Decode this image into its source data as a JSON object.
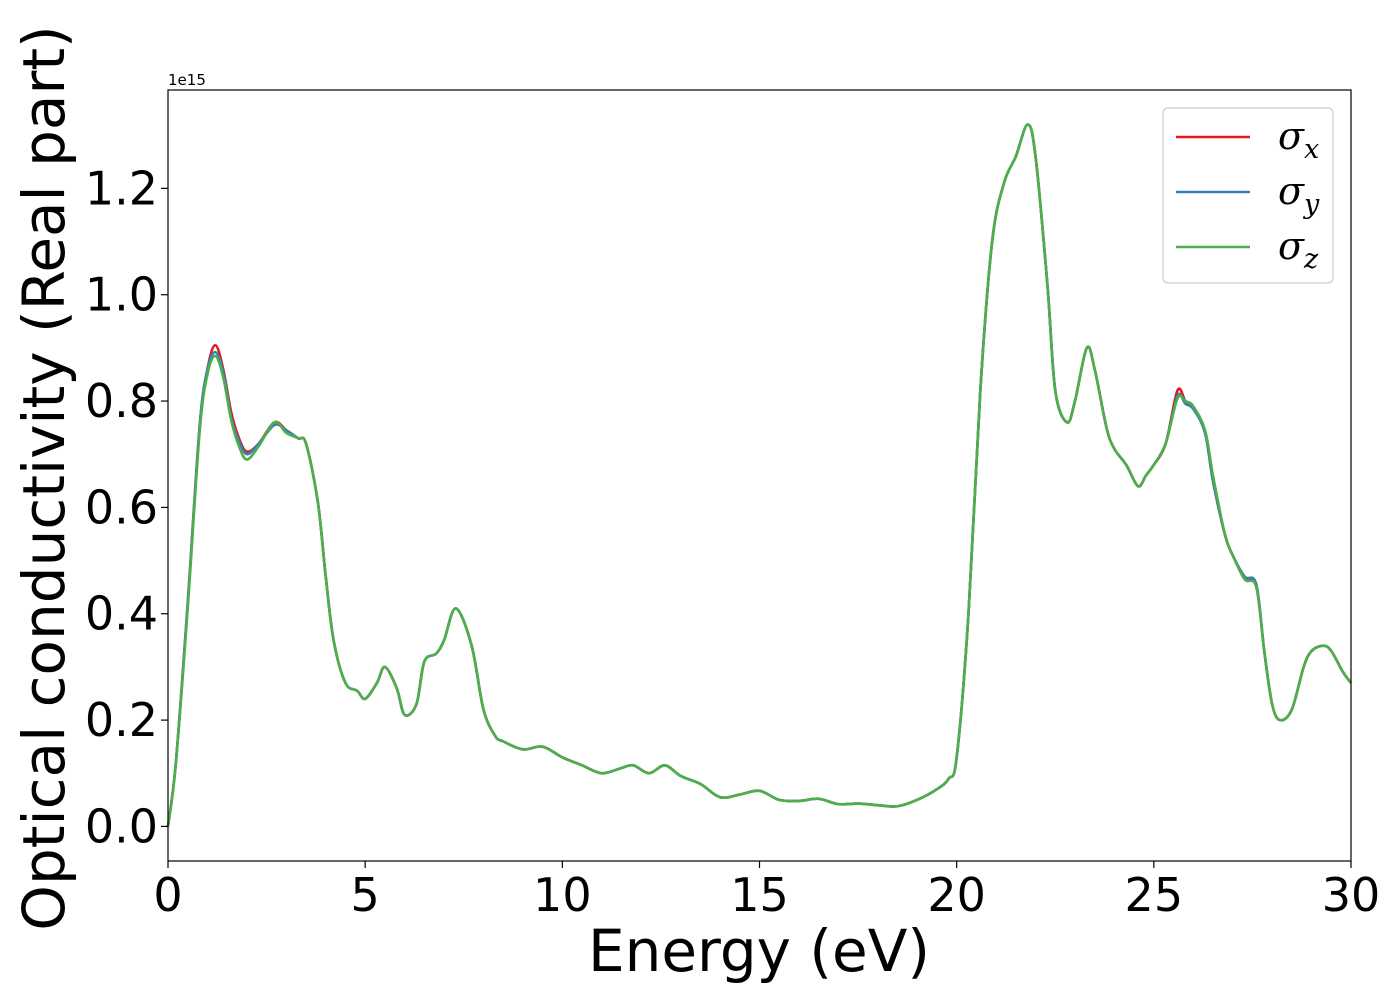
{
  "chart_data": {
    "type": "line",
    "xlabel": "Energy (eV)",
    "ylabel": "Optical conductivity (Real part)",
    "y_offset_label": "1e15",
    "y_multiplier": 1000000000000000.0,
    "xlim": [
      0,
      30
    ],
    "ylim": [
      -0.065,
      1.385
    ],
    "x_ticks": [
      0,
      5,
      10,
      15,
      20,
      25,
      30
    ],
    "x_tick_labels": [
      "0",
      "5",
      "10",
      "15",
      "20",
      "25",
      "30"
    ],
    "y_ticks": [
      0.0,
      0.2,
      0.4,
      0.6,
      0.8,
      1.0,
      1.2
    ],
    "y_tick_labels": [
      "0.0",
      "0.2",
      "0.4",
      "0.6",
      "0.8",
      "1.0",
      "1.2"
    ],
    "grid": false,
    "legend_position": "top-right",
    "x": [
      0,
      0.2,
      0.5,
      0.8,
      1.0,
      1.2,
      1.4,
      1.6,
      1.8,
      2.0,
      2.3,
      2.7,
      3.0,
      3.3,
      3.5,
      3.8,
      4.0,
      4.2,
      4.5,
      4.8,
      5.0,
      5.3,
      5.5,
      5.8,
      6.0,
      6.3,
      6.5,
      6.8,
      7.0,
      7.3,
      7.7,
      8.0,
      8.3,
      8.5,
      9.0,
      9.5,
      10.0,
      10.5,
      11.0,
      11.5,
      11.8,
      12.2,
      12.6,
      13.0,
      13.5,
      14.0,
      14.5,
      15.0,
      15.5,
      16.0,
      16.5,
      17.0,
      17.5,
      18.0,
      18.5,
      19.0,
      19.5,
      19.8,
      20.0,
      20.3,
      20.6,
      20.9,
      21.2,
      21.5,
      21.8,
      22.0,
      22.3,
      22.5,
      22.8,
      23.0,
      23.3,
      23.5,
      23.8,
      24.0,
      24.3,
      24.6,
      24.8,
      25.0,
      25.3,
      25.6,
      25.8,
      26.0,
      26.3,
      26.5,
      26.8,
      27.0,
      27.3,
      27.6,
      27.8,
      28.0,
      28.2,
      28.5,
      28.8,
      29.0,
      29.3,
      29.5,
      29.8,
      30.0
    ],
    "series": [
      {
        "name": "σx",
        "color": "#e41a1c",
        "values": [
          0.0,
          0.12,
          0.42,
          0.75,
          0.86,
          0.905,
          0.86,
          0.78,
          0.73,
          0.705,
          0.72,
          0.76,
          0.745,
          0.73,
          0.72,
          0.61,
          0.47,
          0.35,
          0.27,
          0.255,
          0.24,
          0.27,
          0.3,
          0.26,
          0.21,
          0.23,
          0.31,
          0.325,
          0.35,
          0.41,
          0.34,
          0.22,
          0.17,
          0.16,
          0.145,
          0.15,
          0.13,
          0.115,
          0.1,
          0.11,
          0.115,
          0.1,
          0.115,
          0.095,
          0.08,
          0.055,
          0.06,
          0.067,
          0.05,
          0.048,
          0.052,
          0.042,
          0.043,
          0.04,
          0.038,
          0.05,
          0.07,
          0.09,
          0.13,
          0.4,
          0.82,
          1.1,
          1.21,
          1.26,
          1.32,
          1.26,
          1.02,
          0.82,
          0.76,
          0.8,
          0.9,
          0.86,
          0.75,
          0.71,
          0.68,
          0.64,
          0.66,
          0.68,
          0.72,
          0.82,
          0.8,
          0.79,
          0.74,
          0.65,
          0.55,
          0.51,
          0.47,
          0.45,
          0.33,
          0.23,
          0.2,
          0.22,
          0.3,
          0.33,
          0.34,
          0.33,
          0.29,
          0.27
        ]
      },
      {
        "name": "σy",
        "color": "#377eb8",
        "values": [
          0.0,
          0.12,
          0.42,
          0.75,
          0.86,
          0.892,
          0.855,
          0.77,
          0.725,
          0.7,
          0.72,
          0.755,
          0.745,
          0.73,
          0.72,
          0.61,
          0.47,
          0.35,
          0.27,
          0.255,
          0.24,
          0.27,
          0.3,
          0.26,
          0.21,
          0.23,
          0.31,
          0.325,
          0.35,
          0.41,
          0.34,
          0.22,
          0.17,
          0.16,
          0.145,
          0.15,
          0.13,
          0.115,
          0.1,
          0.11,
          0.115,
          0.1,
          0.115,
          0.095,
          0.08,
          0.055,
          0.06,
          0.067,
          0.05,
          0.048,
          0.052,
          0.042,
          0.043,
          0.04,
          0.038,
          0.05,
          0.07,
          0.09,
          0.13,
          0.4,
          0.82,
          1.1,
          1.21,
          1.26,
          1.32,
          1.26,
          1.02,
          0.82,
          0.76,
          0.8,
          0.9,
          0.86,
          0.75,
          0.71,
          0.68,
          0.64,
          0.66,
          0.68,
          0.72,
          0.81,
          0.795,
          0.785,
          0.74,
          0.65,
          0.55,
          0.51,
          0.47,
          0.455,
          0.33,
          0.23,
          0.2,
          0.22,
          0.3,
          0.33,
          0.34,
          0.33,
          0.29,
          0.27
        ]
      },
      {
        "name": "σz",
        "color": "#4daf4a",
        "values": [
          0.0,
          0.12,
          0.41,
          0.74,
          0.85,
          0.885,
          0.845,
          0.765,
          0.715,
          0.69,
          0.715,
          0.76,
          0.74,
          0.73,
          0.72,
          0.61,
          0.47,
          0.35,
          0.27,
          0.255,
          0.24,
          0.27,
          0.3,
          0.26,
          0.21,
          0.23,
          0.31,
          0.325,
          0.35,
          0.41,
          0.34,
          0.22,
          0.17,
          0.16,
          0.145,
          0.15,
          0.13,
          0.115,
          0.1,
          0.11,
          0.115,
          0.1,
          0.115,
          0.095,
          0.08,
          0.055,
          0.06,
          0.067,
          0.05,
          0.048,
          0.052,
          0.042,
          0.043,
          0.04,
          0.038,
          0.05,
          0.07,
          0.09,
          0.13,
          0.4,
          0.82,
          1.1,
          1.21,
          1.26,
          1.32,
          1.26,
          1.02,
          0.82,
          0.76,
          0.8,
          0.9,
          0.86,
          0.75,
          0.71,
          0.68,
          0.64,
          0.66,
          0.68,
          0.72,
          0.805,
          0.8,
          0.79,
          0.745,
          0.66,
          0.55,
          0.51,
          0.465,
          0.45,
          0.33,
          0.23,
          0.2,
          0.22,
          0.3,
          0.33,
          0.34,
          0.33,
          0.29,
          0.27
        ]
      }
    ]
  },
  "legend": {
    "entries": [
      {
        "symbol": "σ",
        "subscript": "x",
        "color": "#e41a1c"
      },
      {
        "symbol": "σ",
        "subscript": "y",
        "color": "#377eb8"
      },
      {
        "symbol": "σ",
        "subscript": "z",
        "color": "#4daf4a"
      }
    ]
  }
}
